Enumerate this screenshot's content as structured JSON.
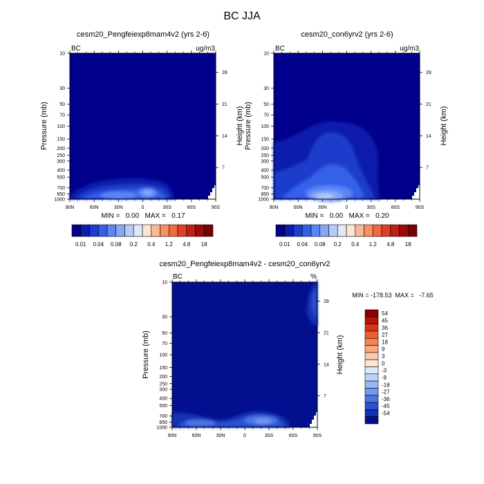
{
  "figure": {
    "title": "BC JJA"
  },
  "chart_data": [
    {
      "type": "heatmap",
      "title": "cesm20_Pengfeiexp8mam4v2 (yrs 2-6)",
      "corner_left": "BC",
      "corner_right": "ug/m3",
      "ylabel": "Pressure (mb)",
      "ylabel_right": "Height (km)",
      "x_ticks": [
        "90N",
        "60N",
        "30N",
        "0",
        "30S",
        "60S",
        "90S"
      ],
      "y_ticks": [
        "10",
        "30",
        "50",
        "70",
        "100",
        "150",
        "200",
        "250",
        "300",
        "400",
        "500",
        "700",
        "850",
        "1000"
      ],
      "y2_ticks": [
        "28",
        "21",
        "14",
        "7"
      ],
      "stats": "MIN =   0.00   MAX =   0.17",
      "levels": [
        "0.01",
        "0.04",
        "0.08",
        "0.2",
        "0.4",
        "1.2",
        "4.8",
        "18"
      ]
    },
    {
      "type": "heatmap",
      "title": "cesm20_con6yrv2 (yrs 2-6)",
      "corner_left": "BC",
      "corner_right": "ug/m3",
      "ylabel": "Pressure (mb)",
      "ylabel_right": "Height (km)",
      "x_ticks": [
        "90N",
        "60N",
        "30N",
        "0",
        "30S",
        "60S",
        "90S"
      ],
      "y_ticks": [
        "10",
        "30",
        "50",
        "70",
        "100",
        "150",
        "200",
        "250",
        "300",
        "400",
        "500",
        "700",
        "850",
        "1000"
      ],
      "y2_ticks": [
        "28",
        "21",
        "14",
        "7"
      ],
      "stats": "MIN =   0.00   MAX =   0.20",
      "levels": [
        "0.01",
        "0.04",
        "0.08",
        "0.2",
        "0.4",
        "1.2",
        "4.8",
        "18"
      ]
    },
    {
      "type": "heatmap",
      "title": "cesm20_Pengfeiexp8mam4v2 - cesm20_con6yrv2",
      "corner_left": "BC",
      "corner_right": "%",
      "ylabel": "Pressure (mb)",
      "ylabel_right": "Height (km)",
      "x_ticks": [
        "90N",
        "60N",
        "30N",
        "0",
        "30S",
        "60S",
        "90S"
      ],
      "y_ticks": [
        "10",
        "30",
        "50",
        "70",
        "100",
        "150",
        "200",
        "250",
        "300",
        "400",
        "500",
        "700",
        "850",
        "1000"
      ],
      "y2_ticks": [
        "28",
        "21",
        "14",
        "7"
      ],
      "stats": "MIN = -178.53  MAX =   -7.65",
      "levels": [
        "54",
        "45",
        "36",
        "27",
        "18",
        "9",
        "3",
        "0",
        "-3",
        "-9",
        "-18",
        "-27",
        "-36",
        "-45",
        "-54"
      ]
    }
  ],
  "colors": {
    "background_field": "#00008c",
    "seq_palette": [
      "#00008c",
      "#0a1eaa",
      "#1c3ecc",
      "#3460e8",
      "#5a85f5",
      "#86a8f8",
      "#b4caf8",
      "#dfe9fb",
      "#fde5d4",
      "#f9b896",
      "#f79165",
      "#f06a3c",
      "#de4124",
      "#bd2016",
      "#9a0a0a",
      "#780000"
    ],
    "diff_palette": [
      "#8c0000",
      "#b81210",
      "#d8351b",
      "#ef5d30",
      "#f7844f",
      "#f9a77e",
      "#fcc9aa",
      "#fde8d6",
      "#dce8fa",
      "#bcd2f8",
      "#98b6f4",
      "#7396ee",
      "#4d74e4",
      "#2a52d2",
      "#1432b6",
      "#02108f"
    ]
  }
}
